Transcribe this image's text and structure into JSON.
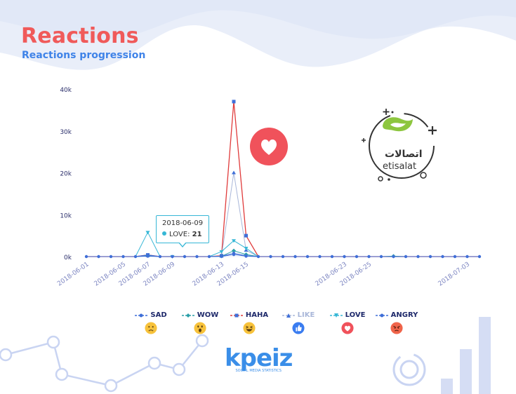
{
  "header": {
    "title": "Reactions",
    "subtitle": "Reactions progression"
  },
  "tooltip": {
    "date": "2018-06-09",
    "series": "LOVE",
    "value": "21"
  },
  "branding": {
    "main": "kpeiz",
    "sub": "SOCIAL MEDIA STATISTICS"
  },
  "logo": {
    "arabic": "اتصالات",
    "english": "etisalat"
  },
  "legend": [
    {
      "name": "SAD",
      "color": "#3f6fd8",
      "marker": "circle",
      "emoji": "sad-face-icon"
    },
    {
      "name": "WOW",
      "color": "#2a9fa8",
      "marker": "diamond",
      "emoji": "wow-face-icon"
    },
    {
      "name": "HAHA",
      "color": "#e03b3b",
      "marker": "square",
      "emoji": "haha-face-icon"
    },
    {
      "name": "LIKE",
      "color": "#a9b7d9",
      "marker": "triangle",
      "emoji": "like-thumb-icon"
    },
    {
      "name": "LOVE",
      "color": "#36b7d6",
      "marker": "triangle-down",
      "emoji": "love-heart-icon"
    },
    {
      "name": "ANGRY",
      "color": "#3f6fd8",
      "marker": "circle",
      "emoji": "angry-face-icon"
    }
  ],
  "chart_data": {
    "type": "line",
    "title": "Reactions",
    "subtitle": "Reactions progression",
    "x_ticks": [
      "2018-06-01",
      "2018-06-05",
      "2018-06-07",
      "2018-06-09",
      "2018-06-13",
      "2018-06-15",
      "2018-06-23",
      "2018-06-25",
      "2018-07-03"
    ],
    "y_ticks": [
      "0k",
      "10k",
      "20k",
      "30k",
      "40k"
    ],
    "ylim": [
      0,
      40000
    ],
    "x": [
      "2018-06-01",
      "2018-06-03",
      "2018-06-04",
      "2018-06-05",
      "2018-06-06",
      "2018-06-07",
      "2018-06-08",
      "2018-06-09",
      "2018-06-10",
      "2018-06-11",
      "2018-06-12",
      "2018-06-13",
      "2018-06-14",
      "2018-06-15",
      "2018-06-16",
      "2018-06-17",
      "2018-06-18",
      "2018-06-19",
      "2018-06-20",
      "2018-06-21",
      "2018-06-22",
      "2018-06-23",
      "2018-06-24",
      "2018-06-25",
      "2018-06-26",
      "2018-06-27",
      "2018-06-28",
      "2018-06-29",
      "2018-06-30",
      "2018-07-01",
      "2018-07-02",
      "2018-07-03",
      "2018-07-04"
    ],
    "series": [
      {
        "name": "HAHA",
        "color": "#e03b3b",
        "values": [
          0,
          0,
          0,
          0,
          0,
          400,
          0,
          0,
          0,
          0,
          0,
          200,
          37000,
          5000,
          0,
          0,
          0,
          0,
          0,
          0,
          0,
          0,
          0,
          0,
          0,
          0,
          0,
          0,
          0,
          0,
          0,
          0,
          0
        ]
      },
      {
        "name": "LIKE",
        "color": "#a9b7d9",
        "values": [
          0,
          0,
          0,
          0,
          0,
          200,
          0,
          0,
          0,
          0,
          0,
          100,
          20000,
          1500,
          0,
          0,
          0,
          0,
          0,
          0,
          0,
          0,
          0,
          0,
          0,
          0,
          0,
          0,
          0,
          0,
          0,
          0,
          0
        ]
      },
      {
        "name": "LOVE",
        "color": "#36b7d6",
        "values": [
          0,
          0,
          0,
          0,
          0,
          5800,
          0,
          21,
          0,
          0,
          0,
          1200,
          3800,
          2000,
          0,
          0,
          0,
          0,
          0,
          0,
          0,
          0,
          0,
          0,
          0,
          0,
          0,
          0,
          0,
          0,
          0,
          0,
          0
        ]
      },
      {
        "name": "WOW",
        "color": "#2a9fa8",
        "values": [
          0,
          0,
          0,
          0,
          0,
          200,
          0,
          0,
          0,
          0,
          0,
          100,
          1400,
          500,
          0,
          0,
          0,
          0,
          0,
          0,
          0,
          0,
          0,
          0,
          0,
          100,
          0,
          0,
          0,
          0,
          0,
          0,
          0
        ]
      },
      {
        "name": "SAD",
        "color": "#3f6fd8",
        "values": [
          0,
          0,
          0,
          0,
          0,
          400,
          0,
          0,
          0,
          0,
          0,
          100,
          800,
          200,
          0,
          0,
          0,
          0,
          0,
          0,
          0,
          0,
          0,
          0,
          0,
          0,
          0,
          0,
          0,
          0,
          0,
          0,
          0
        ]
      },
      {
        "name": "ANGRY",
        "color": "#3f6fd8",
        "values": [
          0,
          0,
          0,
          0,
          0,
          100,
          0,
          0,
          0,
          0,
          0,
          50,
          500,
          100,
          0,
          0,
          0,
          0,
          0,
          0,
          0,
          0,
          0,
          0,
          0,
          0,
          0,
          0,
          0,
          0,
          0,
          0,
          0
        ]
      }
    ]
  }
}
